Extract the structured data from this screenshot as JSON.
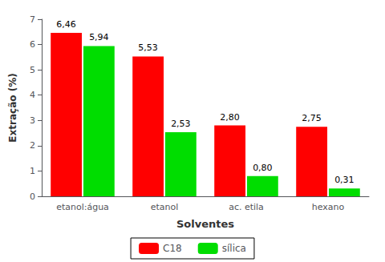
{
  "chart_data": {
    "type": "bar",
    "categories": [
      "etanol:água",
      "etanol",
      "ac. etila",
      "hexano"
    ],
    "series": [
      {
        "name": "C18",
        "color": "#ff0000",
        "values": [
          6.46,
          5.53,
          2.8,
          2.75
        ],
        "value_labels": [
          "6,46",
          "5,53",
          "2,80",
          "2,75"
        ]
      },
      {
        "name": "sílica",
        "color": "#00dd00",
        "values": [
          5.94,
          2.53,
          0.8,
          0.31
        ],
        "value_labels": [
          "5,94",
          "2,53",
          "0,80",
          "0,31"
        ]
      }
    ],
    "xlabel": "Solventes",
    "ylabel": "Extração (%)",
    "ylim": [
      0,
      7
    ],
    "yticks": [
      0,
      1,
      2,
      3,
      4,
      5,
      6,
      7
    ],
    "data_labels": true,
    "legend": "bottom",
    "grid": false
  }
}
